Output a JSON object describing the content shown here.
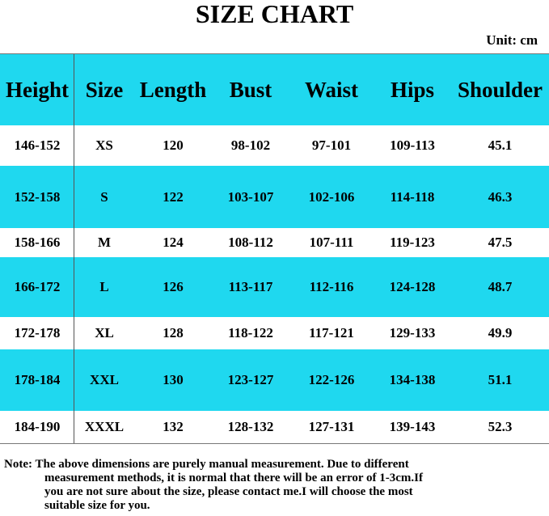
{
  "header": {
    "title": "SIZE CHART",
    "unit": "Unit: cm"
  },
  "table": {
    "columns": [
      "Height",
      "Size",
      "Length",
      "Bust",
      "Waist",
      "Hips",
      "Shoulder"
    ],
    "rows": [
      [
        "146-152",
        "XS",
        "120",
        "98-102",
        "97-101",
        "109-113",
        "45.1"
      ],
      [
        "152-158",
        "S",
        "122",
        "103-107",
        "102-106",
        "114-118",
        "46.3"
      ],
      [
        "158-166",
        "M",
        "124",
        "108-112",
        "107-111",
        "119-123",
        "47.5"
      ],
      [
        "166-172",
        "L",
        "126",
        "113-117",
        "112-116",
        "124-128",
        "48.7"
      ],
      [
        "172-178",
        "XL",
        "128",
        "118-122",
        "117-121",
        "129-133",
        "49.9"
      ],
      [
        "178-184",
        "XXL",
        "130",
        "123-127",
        "122-126",
        "134-138",
        "51.1"
      ],
      [
        "184-190",
        "XXXL",
        "132",
        "128-132",
        "127-131",
        "139-143",
        "52.3"
      ]
    ]
  },
  "note": {
    "label": "Note:",
    "lines": [
      "The above dimensions are purely manual measurement. Due to different",
      "measurement methods, it is normal that there will be an error of 1-3cm.If",
      "you are not sure about the size, please contact me.I will choose the most",
      "suitable size for you."
    ]
  }
}
